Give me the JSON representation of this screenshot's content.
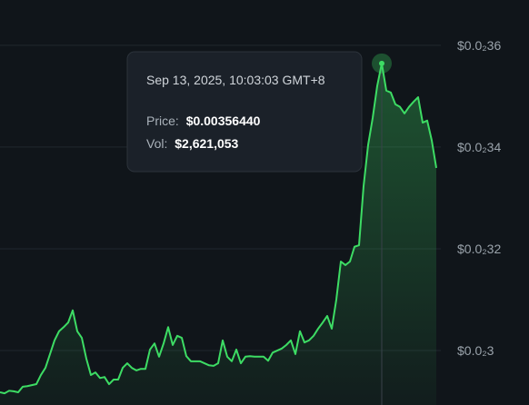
{
  "chart_data": {
    "type": "line",
    "values": [
      0.002918,
      0.002916,
      0.002921,
      0.00292,
      0.002918,
      0.002929,
      0.00293,
      0.002932,
      0.002934,
      0.002952,
      0.002966,
      0.002993,
      0.00302,
      0.003038,
      0.003046,
      0.003055,
      0.003079,
      0.003038,
      0.003025,
      0.002984,
      0.002952,
      0.002957,
      0.002946,
      0.002948,
      0.002934,
      0.002943,
      0.002943,
      0.002966,
      0.002975,
      0.002966,
      0.002961,
      0.002964,
      0.002964,
      0.003002,
      0.003014,
      0.002988,
      0.003014,
      0.003046,
      0.003011,
      0.003029,
      0.003025,
      0.002989,
      0.002979,
      0.002979,
      0.002979,
      0.002975,
      0.002971,
      0.00297,
      0.002975,
      0.00302,
      0.002988,
      0.002979,
      0.003002,
      0.002975,
      0.002988,
      0.002989,
      0.002988,
      0.002988,
      0.002988,
      0.00298,
      0.002996,
      0.003,
      0.003004,
      0.003011,
      0.00302,
      0.002993,
      0.003038,
      0.003016,
      0.00302,
      0.003029,
      0.003043,
      0.003055,
      0.003068,
      0.003043,
      0.0031,
      0.003175,
      0.003168,
      0.003175,
      0.003204,
      0.003207,
      0.003323,
      0.003404,
      0.003457,
      0.00352,
      0.0035644,
      0.003511,
      0.003507,
      0.003484,
      0.003479,
      0.003466,
      0.003479,
      0.003489,
      0.003498,
      0.003448,
      0.003452,
      0.003413,
      0.003359
    ],
    "color": "#3ddc64",
    "ylim": [
      0.002893,
      0.003689
    ],
    "yticks": [
      {
        "value": 0.0036,
        "label": "$0.0₂36"
      },
      {
        "value": 0.0034,
        "label": "$0.0₂34"
      },
      {
        "value": 0.0032,
        "label": "$0.0₂32"
      },
      {
        "value": 0.003,
        "label": "$0.0₂3"
      }
    ],
    "grid": true,
    "highlight": 84,
    "tooltip": {
      "date": "Sep 13, 2025, 10:03:03 GMT+8",
      "price_label": "Price:",
      "price": "$0.00356440",
      "vol_label": "Vol:",
      "vol": "$2,621,053"
    }
  }
}
